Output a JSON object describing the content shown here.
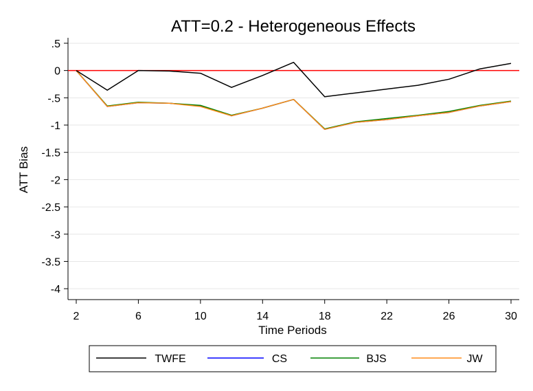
{
  "chart_data": {
    "type": "line",
    "title": "ATT=0.2 - Heterogeneous Effects",
    "xlabel": "Time Periods",
    "ylabel": "ATT Bias",
    "xlim": [
      2,
      30
    ],
    "ylim": [
      -4.2,
      0.6
    ],
    "x_ticks": [
      2,
      6,
      10,
      14,
      18,
      22,
      26,
      30
    ],
    "y_ticks": [
      0.5,
      0,
      -0.5,
      -1,
      -1.5,
      -2,
      -2.5,
      -3,
      -3.5,
      -4
    ],
    "y_tick_labels": [
      ".5",
      "0",
      "-.5",
      "-1",
      "-1.5",
      "-2",
      "-2.5",
      "-3",
      "-3.5",
      "-4"
    ],
    "grid": true,
    "reference_line": {
      "y": 0,
      "color": "#ff0000"
    },
    "legend_position": "bottom",
    "x": [
      2,
      4,
      6,
      8,
      10,
      12,
      14,
      16,
      18,
      20,
      22,
      24,
      26,
      28,
      30
    ],
    "series": [
      {
        "name": "TWFE",
        "color": "#000000",
        "values": [
          0,
          -0.36,
          0,
          -0.01,
          -0.05,
          -0.31,
          -0.09,
          0.15,
          -0.48,
          -0.41,
          -0.34,
          -0.27,
          -0.16,
          0.03,
          0.13
        ]
      },
      {
        "name": "CS",
        "color": "#0000ff",
        "values": [
          0,
          -0.66,
          -0.59,
          -0.6,
          -0.65,
          -0.83,
          -0.69,
          -0.53,
          -1.08,
          -0.95,
          -0.9,
          -0.83,
          -0.77,
          -0.65,
          -0.57
        ]
      },
      {
        "name": "BJS",
        "color": "#008000",
        "values": [
          0,
          -0.65,
          -0.58,
          -0.6,
          -0.64,
          -0.82,
          -0.69,
          -0.53,
          -1.07,
          -0.94,
          -0.88,
          -0.82,
          -0.75,
          -0.64,
          -0.56
        ]
      },
      {
        "name": "JW",
        "color": "#ff8c1a",
        "values": [
          0,
          -0.66,
          -0.59,
          -0.6,
          -0.66,
          -0.83,
          -0.69,
          -0.53,
          -1.08,
          -0.95,
          -0.9,
          -0.83,
          -0.77,
          -0.65,
          -0.57
        ]
      }
    ]
  }
}
